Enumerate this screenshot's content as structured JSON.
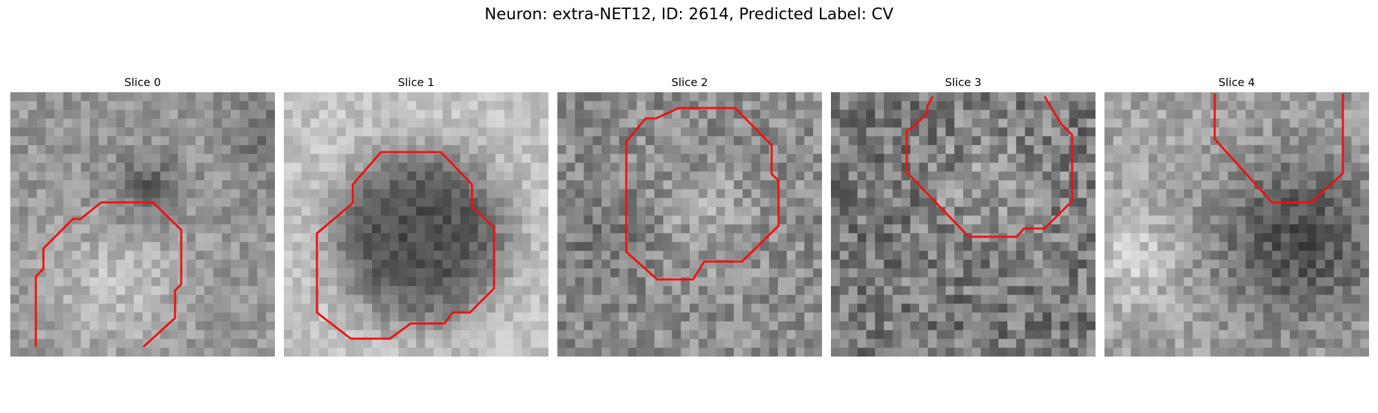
{
  "figure": {
    "title": "Neuron: extra-NET12, ID: 2614, Predicted Label: CV",
    "outline_color": "#ee1111",
    "panels": [
      {
        "title": "Slice 0",
        "seed": 11,
        "tone": "light-blob-lower-left"
      },
      {
        "title": "Slice 1",
        "seed": 23,
        "tone": "dark-round-cell"
      },
      {
        "title": "Slice 2",
        "seed": 37,
        "tone": "mottled-center"
      },
      {
        "title": "Slice 3",
        "seed": 51,
        "tone": "noisy-speckled"
      },
      {
        "title": "Slice 4",
        "seed": 67,
        "tone": "dark-right-top"
      }
    ]
  }
}
